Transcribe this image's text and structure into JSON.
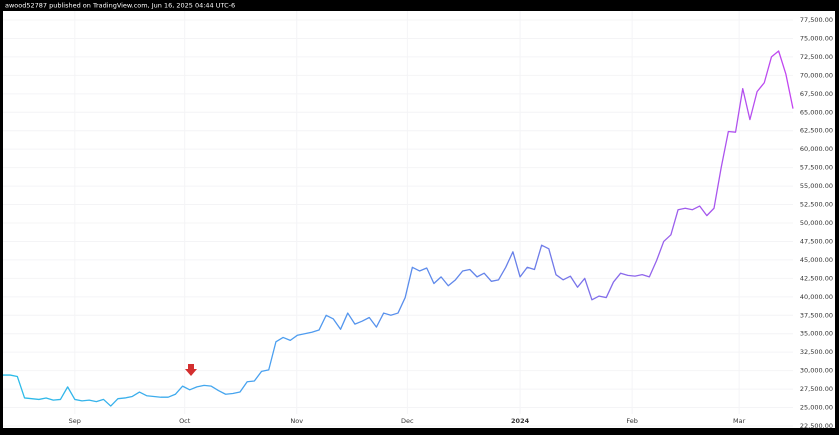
{
  "header": "awood52787 published on TradingView.com, Jun 16, 2025 04:44 UTC-6",
  "chart_data": {
    "type": "line",
    "values": [
      29400,
      29400,
      29200,
      26300,
      26200,
      26100,
      26300,
      26000,
      26100,
      27800,
      26100,
      25900,
      26000,
      25800,
      26100,
      25200,
      26200,
      26300,
      26500,
      27100,
      26600,
      26500,
      26400,
      26400,
      26800,
      27900,
      27400,
      27800,
      28000,
      27900,
      27300,
      26800,
      26900,
      27100,
      28500,
      28600,
      29900,
      30100,
      33900,
      34500,
      34100,
      34800,
      35000,
      35200,
      35500,
      37500,
      37000,
      35600,
      37800,
      36300,
      36700,
      37200,
      35900,
      37800,
      37500,
      37800,
      39900,
      44000,
      43500,
      43900,
      41800,
      42700,
      41500,
      42300,
      43500,
      43700,
      42700,
      43200,
      42100,
      42300,
      44000,
      46100,
      42700,
      44000,
      43700,
      47000,
      46500,
      43000,
      42300,
      42800,
      41300,
      42500,
      39600,
      40100,
      39900,
      42000,
      43200,
      42900,
      42800,
      43000,
      42700,
      44900,
      47500,
      48400,
      51800,
      52000,
      51800,
      52300,
      51000,
      52000,
      57500,
      62400,
      62300,
      68200,
      64000,
      67800,
      69000,
      72500,
      73300,
      70200,
      65500
    ],
    "line_colors": [
      "#2bbde8",
      "#4aa0f0",
      "#6a7ee8",
      "#c445f0"
    ],
    "xlim": [
      0,
      110
    ],
    "xticks": [
      {
        "value": 10,
        "label": "Sep"
      },
      {
        "value": 25.3,
        "label": "Oct"
      },
      {
        "value": 40.9,
        "label": "Nov"
      },
      {
        "value": 56.3,
        "label": "Dec"
      },
      {
        "value": 72,
        "label": "2024",
        "bold": true
      },
      {
        "value": 87.6,
        "label": "Feb"
      },
      {
        "value": 102.5,
        "label": "Mar"
      }
    ],
    "ylim": [
      22500,
      77500
    ],
    "yticks": [
      {
        "value": 22500,
        "label": "22,500.00"
      },
      {
        "value": 25000,
        "label": "25,000.00"
      },
      {
        "value": 27500,
        "label": "27,500.00"
      },
      {
        "value": 30000,
        "label": "30,000.00"
      },
      {
        "value": 32500,
        "label": "32,500.00"
      },
      {
        "value": 35000,
        "label": "35,000.00"
      },
      {
        "value": 37500,
        "label": "37,500.00"
      },
      {
        "value": 40000,
        "label": "40,000.00"
      },
      {
        "value": 42500,
        "label": "42,500.00"
      },
      {
        "value": 45000,
        "label": "45,000.00"
      },
      {
        "value": 47500,
        "label": "47,500.00"
      },
      {
        "value": 50000,
        "label": "50,000.00"
      },
      {
        "value": 52500,
        "label": "52,500.00"
      },
      {
        "value": 55000,
        "label": "55,000.00"
      },
      {
        "value": 57500,
        "label": "57,500.00"
      },
      {
        "value": 60000,
        "label": "60,000.00"
      },
      {
        "value": 62500,
        "label": "62,500.00"
      },
      {
        "value": 65000,
        "label": "65,000.00"
      },
      {
        "value": 67500,
        "label": "67,500.00"
      },
      {
        "value": 70000,
        "label": "70,000.00"
      },
      {
        "value": 72500,
        "label": "72,500.00"
      },
      {
        "value": 75000,
        "label": "75,000.00"
      },
      {
        "value": 77500,
        "label": "77,500.00"
      }
    ],
    "grid": true
  }
}
